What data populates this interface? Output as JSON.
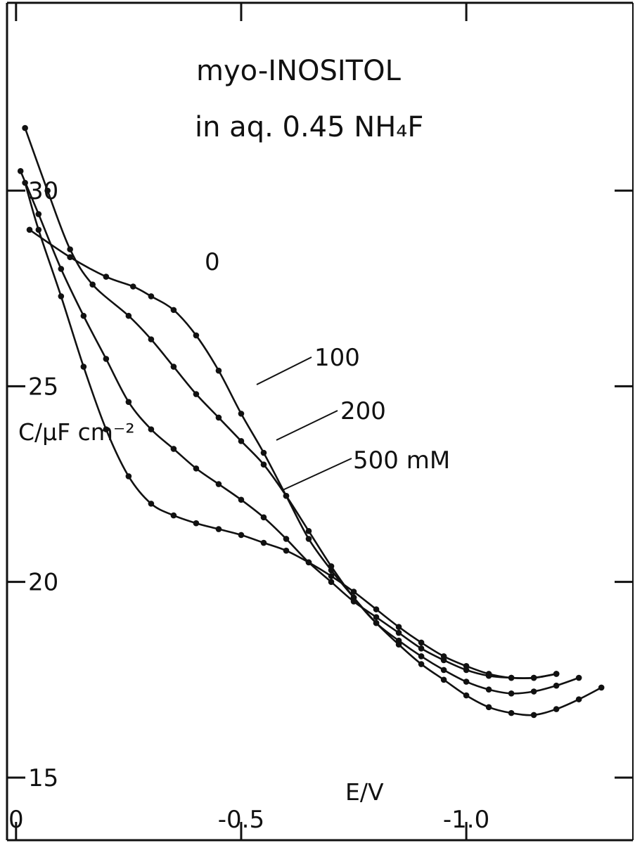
{
  "chart_data": {
    "type": "line",
    "title_lines": [
      "myo-INOSITOL",
      "in aq.  0.45 NH₄F"
    ],
    "xlabel": "E/V",
    "ylabel": "C/μF cm⁻²",
    "xlim": [
      0.02,
      -1.37
    ],
    "ylim": [
      13.4,
      34.8
    ],
    "x_ticks": [
      {
        "value": 0,
        "label": "0"
      },
      {
        "value": -0.5,
        "label": "-0.5"
      },
      {
        "value": -1.0,
        "label": "-1.0"
      }
    ],
    "y_ticks": [
      {
        "value": 30,
        "label": "30"
      },
      {
        "value": 25,
        "label": "25"
      },
      {
        "value": 20,
        "label": "20"
      },
      {
        "value": 15,
        "label": "15"
      }
    ],
    "grid": false,
    "legend": "none",
    "line_color": "#111111",
    "series": [
      {
        "name": "0",
        "x": [
          -0.03,
          -0.12,
          -0.2,
          -0.26,
          -0.3,
          -0.35,
          -0.4,
          -0.45,
          -0.5,
          -0.55,
          -0.6,
          -0.65,
          -0.7,
          -0.75,
          -0.8,
          -0.85,
          -0.9,
          -0.95,
          -1.0,
          -1.05,
          -1.1,
          -1.15,
          -1.2,
          -1.25,
          -1.3
        ],
        "y": [
          29.0,
          28.3,
          27.8,
          27.55,
          27.3,
          26.95,
          26.3,
          25.4,
          24.3,
          23.3,
          22.2,
          21.1,
          20.3,
          19.6,
          18.95,
          18.4,
          17.9,
          17.5,
          17.1,
          16.8,
          16.65,
          16.6,
          16.75,
          17.0,
          17.3
        ]
      },
      {
        "name": "100",
        "x": [
          -0.02,
          -0.07,
          -0.12,
          -0.17,
          -0.25,
          -0.3,
          -0.35,
          -0.4,
          -0.45,
          -0.5,
          -0.55,
          -0.6,
          -0.65,
          -0.7,
          -0.75,
          -0.8,
          -0.85,
          -0.9,
          -0.95,
          -1.0,
          -1.05,
          -1.1,
          -1.15,
          -1.2,
          -1.25
        ],
        "y": [
          31.6,
          30.0,
          28.5,
          27.6,
          26.8,
          26.2,
          25.5,
          24.8,
          24.2,
          23.6,
          23.0,
          22.2,
          21.3,
          20.4,
          19.6,
          18.95,
          18.5,
          18.1,
          17.75,
          17.45,
          17.25,
          17.15,
          17.2,
          17.35,
          17.55
        ]
      },
      {
        "name": "200",
        "x": [
          -0.01,
          -0.05,
          -0.1,
          -0.15,
          -0.2,
          -0.25,
          -0.3,
          -0.35,
          -0.4,
          -0.45,
          -0.5,
          -0.55,
          -0.6,
          -0.65,
          -0.7,
          -0.75,
          -0.8,
          -0.85,
          -0.9,
          -0.95,
          -1.0,
          -1.05,
          -1.1,
          -1.15,
          -1.2
        ],
        "y": [
          30.5,
          29.4,
          28.0,
          26.8,
          25.7,
          24.6,
          23.9,
          23.4,
          22.9,
          22.5,
          22.1,
          21.65,
          21.1,
          20.5,
          20.0,
          19.5,
          19.1,
          18.7,
          18.3,
          18.0,
          17.75,
          17.6,
          17.55,
          17.55,
          17.65
        ]
      },
      {
        "name": "500 mM",
        "x": [
          -0.02,
          -0.05,
          -0.1,
          -0.15,
          -0.2,
          -0.25,
          -0.3,
          -0.35,
          -0.4,
          -0.45,
          -0.5,
          -0.55,
          -0.6,
          -0.65,
          -0.7,
          -0.75,
          -0.8,
          -0.85,
          -0.9,
          -0.95,
          -1.0,
          -1.05,
          -1.1,
          -1.15,
          -1.2
        ],
        "y": [
          30.2,
          29.0,
          27.3,
          25.5,
          23.9,
          22.7,
          22.0,
          21.7,
          21.5,
          21.35,
          21.2,
          21.0,
          20.8,
          20.5,
          20.15,
          19.75,
          19.3,
          18.85,
          18.45,
          18.1,
          17.85,
          17.65,
          17.55,
          17.55,
          17.65
        ]
      }
    ]
  }
}
